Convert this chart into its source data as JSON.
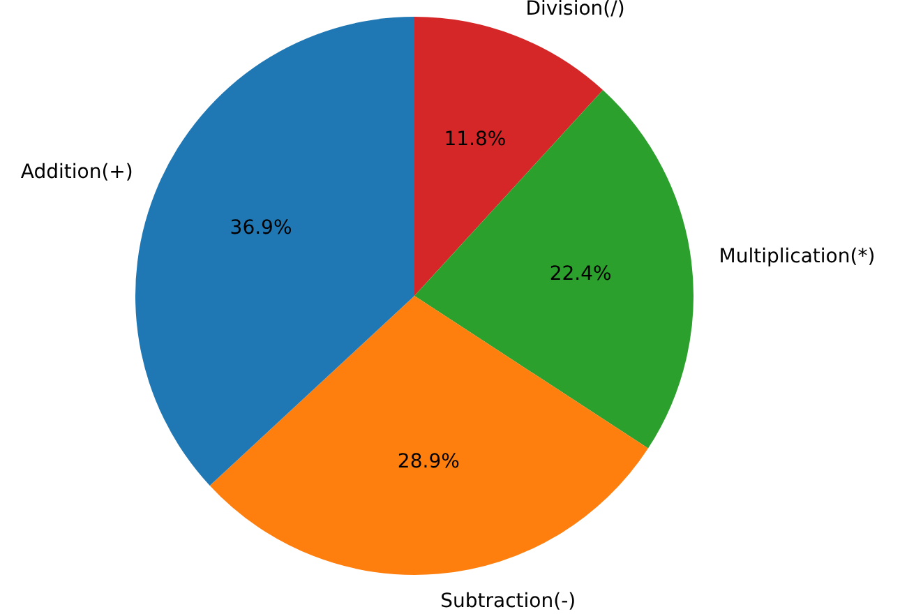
{
  "chart_data": {
    "type": "pie",
    "categories": [
      "Division(/)",
      "Multiplication(*)",
      "Subtraction(-)",
      "Addition(+)"
    ],
    "values": [
      11.8,
      22.4,
      28.9,
      36.9
    ],
    "colors": [
      "#d62728",
      "#2ca02c",
      "#ff7f0e",
      "#1f77b4"
    ],
    "value_labels": [
      "11.8%",
      "22.4%",
      "28.9%",
      "36.9%"
    ],
    "legend": false
  }
}
